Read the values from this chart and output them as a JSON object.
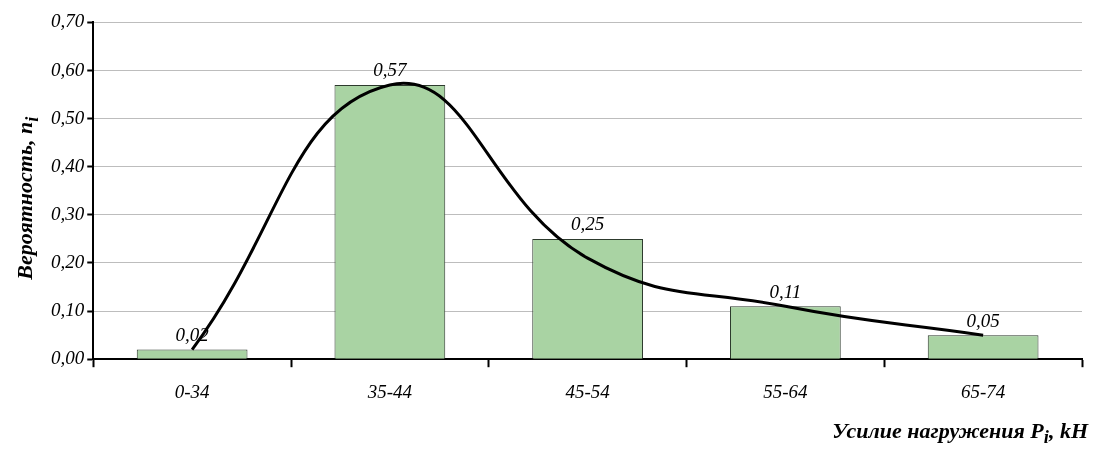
{
  "chart_data": {
    "type": "bar",
    "xlabel": "Усилие нагружения P$_{i}$, kH",
    "ylabel": "Вероятность, n$_{i}$",
    "categories": [
      "0-34",
      "35-44",
      "45-54",
      "55-64",
      "65-74"
    ],
    "series": [
      {
        "color": "#a9d3a3",
        "values": [
          0.02,
          0.57,
          0.25,
          0.11,
          0.05
        ],
        "value_labels": [
          "0,02",
          "0,57",
          "0,25",
          "0,11",
          "0,05"
        ]
      },
      {
        "type": "line",
        "color": "#000000",
        "values": [
          0.02,
          0.57,
          0.21,
          0.11,
          0.05
        ],
        "marker": "none"
      }
    ],
    "ylim": [
      0,
      0.7
    ],
    "yticks": [
      {
        "value": 0,
        "label": "0,00"
      },
      {
        "value": 0.1,
        "label": "0,10"
      },
      {
        "value": 0.2,
        "label": "0,20"
      },
      {
        "value": 0.3,
        "label": "0,30"
      },
      {
        "value": 0.4,
        "label": "0,40"
      },
      {
        "value": 0.5,
        "label": "0,50"
      },
      {
        "value": 0.6,
        "label": "0,60"
      },
      {
        "value": 0.7,
        "label": "0,70"
      }
    ],
    "grid": "y",
    "legend": false
  }
}
